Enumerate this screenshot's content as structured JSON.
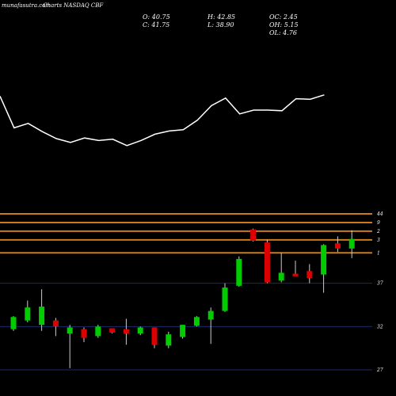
{
  "header": {
    "source": "munafasutra.com",
    "title": "Charts NASDAQ CBF"
  },
  "ohlc": {
    "o": "O: 40.75",
    "h": "H: 42.85",
    "c": "C: 41.75",
    "l": "L: 38.90",
    "oc": "OC: 2.45",
    "oh": "OH: 5.15",
    "ol": "OL: 4.76"
  },
  "colors": {
    "up": "#00cc00",
    "down": "#dd0000",
    "level": "#cc7a1a",
    "grid": "#1a2a6e",
    "line": "#ffffff",
    "bg": "#000000"
  },
  "chart_data": {
    "type": "candlestick",
    "y_ticks": [
      27,
      32,
      37
    ],
    "ylim": [
      26,
      45
    ],
    "level_lines": [
      {
        "value": 45,
        "label": "44"
      },
      {
        "value": 44,
        "label": "9"
      },
      {
        "value": 43,
        "label": "2"
      },
      {
        "value": 42,
        "label": "3"
      },
      {
        "value": 40.5,
        "label": "1"
      }
    ],
    "candles": [
      {
        "o": 31.7,
        "h": 33.2,
        "l": 31.5,
        "c": 33.1
      },
      {
        "o": 32.7,
        "h": 35.0,
        "l": 32.5,
        "c": 34.2
      },
      {
        "o": 32.2,
        "h": 36.3,
        "l": 31.5,
        "c": 34.3
      },
      {
        "o": 32.7,
        "h": 33.0,
        "l": 30.9,
        "c": 32.0
      },
      {
        "o": 31.2,
        "h": 32.2,
        "l": 27.2,
        "c": 31.9
      },
      {
        "o": 31.7,
        "h": 31.9,
        "l": 30.2,
        "c": 30.7
      },
      {
        "o": 30.9,
        "h": 32.2,
        "l": 30.7,
        "c": 32.0
      },
      {
        "o": 31.8,
        "h": 31.8,
        "l": 31.2,
        "c": 31.3
      },
      {
        "o": 31.7,
        "h": 32.9,
        "l": 29.9,
        "c": 31.2
      },
      {
        "o": 31.2,
        "h": 32.0,
        "l": 31.0,
        "c": 31.9
      },
      {
        "o": 31.9,
        "h": 31.9,
        "l": 29.5,
        "c": 29.9
      },
      {
        "o": 29.8,
        "h": 31.4,
        "l": 29.5,
        "c": 31.1
      },
      {
        "o": 30.8,
        "h": 32.2,
        "l": 30.6,
        "c": 32.2
      },
      {
        "o": 32.1,
        "h": 33.2,
        "l": 32.0,
        "c": 33.1
      },
      {
        "o": 32.8,
        "h": 34.2,
        "l": 30.0,
        "c": 33.8
      },
      {
        "o": 33.8,
        "h": 37.0,
        "l": 33.7,
        "c": 36.5
      },
      {
        "o": 36.7,
        "h": 40.1,
        "l": 36.6,
        "c": 39.8
      },
      {
        "o": 43.2,
        "h": 43.3,
        "l": 41.8,
        "c": 41.9
      },
      {
        "o": 41.7,
        "h": 42.0,
        "l": 37.0,
        "c": 37.1
      },
      {
        "o": 37.3,
        "h": 40.5,
        "l": 37.1,
        "c": 38.2
      },
      {
        "o": 38.1,
        "h": 39.6,
        "l": 37.9,
        "c": 37.8
      },
      {
        "o": 38.4,
        "h": 39.2,
        "l": 37.0,
        "c": 37.6
      },
      {
        "o": 38.0,
        "h": 41.5,
        "l": 35.9,
        "c": 41.4
      },
      {
        "o": 41.6,
        "h": 42.4,
        "l": 40.6,
        "c": 41.0
      },
      {
        "o": 41.0,
        "h": 43.1,
        "l": 39.9,
        "c": 42.1
      }
    ],
    "line_series": [
      {
        "x": 0,
        "y": 0.92
      },
      {
        "x": 1,
        "y": 0.42
      },
      {
        "x": 2,
        "y": 0.49
      },
      {
        "x": 3,
        "y": 0.36
      },
      {
        "x": 4,
        "y": 0.25
      },
      {
        "x": 5,
        "y": 0.19
      },
      {
        "x": 6,
        "y": 0.26
      },
      {
        "x": 7,
        "y": 0.22
      },
      {
        "x": 8,
        "y": 0.24
      },
      {
        "x": 9,
        "y": 0.14
      },
      {
        "x": 10,
        "y": 0.22
      },
      {
        "x": 11,
        "y": 0.32
      },
      {
        "x": 12,
        "y": 0.37
      },
      {
        "x": 13,
        "y": 0.39
      },
      {
        "x": 14,
        "y": 0.54
      },
      {
        "x": 15,
        "y": 0.77
      },
      {
        "x": 16,
        "y": 0.89
      },
      {
        "x": 17,
        "y": 0.64
      },
      {
        "x": 18,
        "y": 0.7
      },
      {
        "x": 19,
        "y": 0.7
      },
      {
        "x": 20,
        "y": 0.69
      },
      {
        "x": 21,
        "y": 0.88
      },
      {
        "x": 22,
        "y": 0.87
      },
      {
        "x": 23,
        "y": 0.94
      }
    ]
  }
}
